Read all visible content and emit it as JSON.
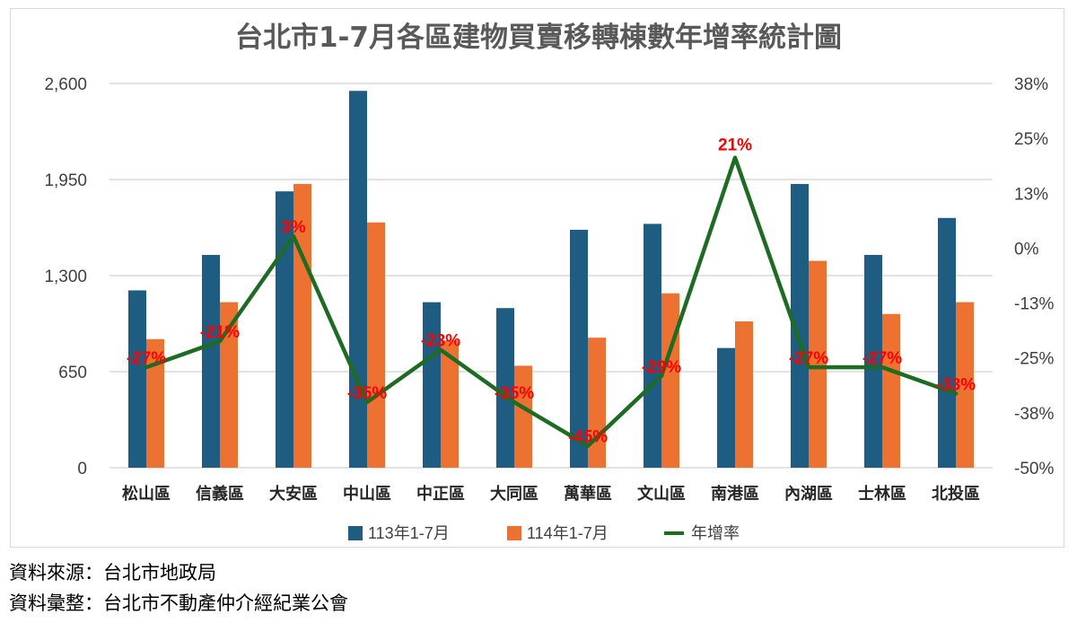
{
  "chart_data": {
    "type": "bar",
    "title": "台北市1-7月各區建物買賣移轉棟數年增率統計圖",
    "categories": [
      "松山區",
      "信義區",
      "大安區",
      "中山區",
      "中正區",
      "大同區",
      "萬華區",
      "文山區",
      "南港區",
      "內湖區",
      "士林區",
      "北投區"
    ],
    "series": [
      {
        "name": "113年1-7月",
        "type": "bar",
        "axis": "left",
        "color": "#1f5c82",
        "values": [
          1200,
          1440,
          1870,
          2550,
          1120,
          1080,
          1610,
          1650,
          810,
          1920,
          1440,
          1690
        ]
      },
      {
        "name": "114年1-7月",
        "type": "bar",
        "axis": "left",
        "color": "#ed7231",
        "values": [
          870,
          1120,
          1920,
          1660,
          860,
          690,
          880,
          1180,
          990,
          1400,
          1040,
          1120
        ]
      },
      {
        "name": "年增率",
        "type": "line",
        "axis": "right",
        "color": "#1e6b24",
        "values": [
          -27,
          -21,
          3,
          -35,
          -23,
          -35,
          -45,
          -29,
          21,
          -27,
          -27,
          -33
        ],
        "labels": [
          "-27%",
          "-21%",
          "3%",
          "-35%",
          "-23%",
          "-35%",
          "-45%",
          "-29%",
          "21%",
          "-27%",
          "-27%",
          "-33%"
        ]
      }
    ],
    "y_left": {
      "ticks": [
        "0",
        "650",
        "1,300",
        "1,950",
        "2,600"
      ],
      "ylim": [
        0,
        2600
      ]
    },
    "y_right": {
      "ticks": [
        "-50%",
        "-38%",
        "-25%",
        "-13%",
        "0%",
        "13%",
        "25%",
        "38%"
      ],
      "ylim": [
        -50,
        38
      ]
    },
    "grid": true,
    "legend": "bottom"
  },
  "footer": {
    "source": "資料來源：台北市地政局",
    "compiled": "資料彙整：台北市不動產仲介經紀業公會"
  }
}
